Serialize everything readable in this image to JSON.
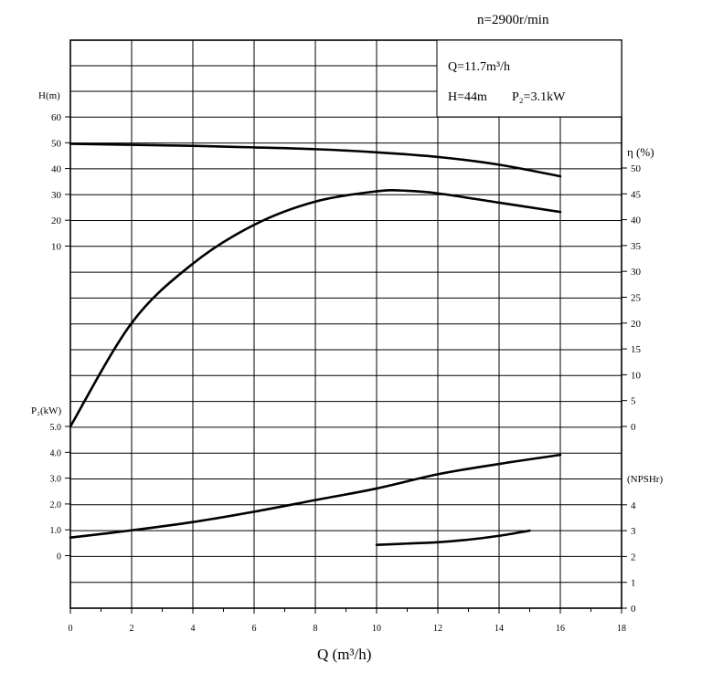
{
  "header": {
    "speed": "n=2900r/min",
    "rated_flow": "Q=11.7m³/h",
    "rated_head": "H=44m",
    "rated_power": "P₂=3.1kW"
  },
  "axes": {
    "x_label": "Q (m³/h)",
    "x_ticks": [
      "0",
      "2",
      "4",
      "6",
      "8",
      "10",
      "12",
      "14",
      "16",
      "18"
    ],
    "head_label": "H(m)",
    "head_ticks": [
      "60",
      "50",
      "40",
      "30",
      "20",
      "10"
    ],
    "power_label": "P₂(kW)",
    "power_ticks": [
      "5.0",
      "4.0",
      "3.0",
      "2.0",
      "1.0",
      "0"
    ],
    "eff_label": "η (%)",
    "eff_ticks": [
      "50",
      "45",
      "40",
      "35",
      "30",
      "25",
      "20",
      "15",
      "10",
      "5",
      "0"
    ],
    "npsh_label": "(NPSHr)",
    "npsh_ticks": [
      "4",
      "3",
      "2",
      "1",
      "0"
    ]
  },
  "colors": {
    "curve": "#000000",
    "npsh_curve": "#a000a8"
  },
  "chart_data": {
    "type": "line",
    "xlabel": "Q (m³/h)",
    "xlim": [
      0,
      18
    ],
    "series": [
      {
        "name": "H",
        "axis": "H(m)",
        "ylim": [
          0,
          60
        ],
        "x": [
          0,
          2,
          4,
          6,
          8,
          10,
          12,
          14,
          16
        ],
        "values": [
          49.6,
          49.2,
          48.8,
          48.2,
          47.5,
          46.3,
          44.5,
          41.5,
          37.0
        ]
      },
      {
        "name": "η",
        "axis": "η (%)",
        "ylim": [
          0,
          50
        ],
        "x": [
          0,
          2,
          4,
          6,
          8,
          10,
          11,
          12,
          14,
          16
        ],
        "values": [
          0,
          20,
          31.5,
          39,
          43.5,
          45.5,
          45.6,
          45.1,
          43.3,
          41.5
        ]
      },
      {
        "name": "P₂",
        "axis": "P₂(kW)",
        "ylim": [
          0,
          5
        ],
        "x": [
          0,
          2,
          4,
          6,
          8,
          10,
          12,
          14,
          16
        ],
        "values": [
          0.7,
          0.98,
          1.3,
          1.7,
          2.15,
          2.6,
          3.15,
          3.55,
          3.9
        ]
      },
      {
        "name": "NPSHr",
        "axis": "(NPSHr)",
        "ylim": [
          0,
          4
        ],
        "x": [
          10,
          11,
          12,
          13,
          14,
          15
        ],
        "values": [
          2.45,
          2.5,
          2.55,
          2.65,
          2.8,
          3.0
        ]
      }
    ]
  }
}
